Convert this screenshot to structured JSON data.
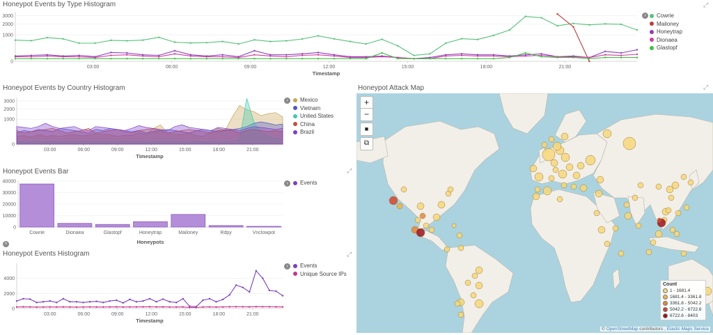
{
  "colors": {
    "cowrie": "#57c17b",
    "mailoney": "#bc3c3c",
    "honeytrap": "#8a3ebf",
    "dionaea": "#cf3ca0",
    "glastopf": "#3ec13e",
    "mexico": "#c9a257",
    "vietnam": "#4d56c9",
    "united_states": "#3fc8b0",
    "china": "#c94a3f",
    "brazil": "#7a3ec9",
    "events": "#7b3fc0",
    "unique_ips": "#c8358a",
    "bar_fill": "#b48ed8",
    "bar_stroke": "#8e5cc2"
  },
  "panels": {
    "type_hist": {
      "title": "Honeypot Events by Type Histogram",
      "xlabel": "Timestamp",
      "legend": [
        {
          "label": "Cowrie",
          "color": "#57c17b"
        },
        {
          "label": "Mailoney",
          "color": "#bc3c3c"
        },
        {
          "label": "Honeytrap",
          "color": "#8a3ebf"
        },
        {
          "label": "Dionaea",
          "color": "#cf3ca0"
        },
        {
          "label": "Glastopf",
          "color": "#3ec13e"
        }
      ]
    },
    "country_hist": {
      "title": "Honeypot Events by Country Histogram",
      "xlabel": "Timestamp",
      "legend": [
        {
          "label": "Mexico",
          "color": "#c9a257"
        },
        {
          "label": "Vietnam",
          "color": "#4d56c9"
        },
        {
          "label": "United States",
          "color": "#3fc8b0"
        },
        {
          "label": "China",
          "color": "#c94a3f"
        },
        {
          "label": "Brazil",
          "color": "#7a3ec9"
        }
      ]
    },
    "events_bar": {
      "title": "Honeypot Events Bar",
      "xlabel": "Honeypots",
      "legend": [
        {
          "label": "Events",
          "color": "#7b3fc0"
        }
      ]
    },
    "events_hist": {
      "title": "Honeypot Events Histogram",
      "xlabel": "Timestamp",
      "legend": [
        {
          "label": "Events",
          "color": "#7b3fc0"
        },
        {
          "label": "Unique Source IPs",
          "color": "#c8358a"
        }
      ]
    },
    "attack_map": {
      "title": "Honeypot Attack Map",
      "zoom_in": "+",
      "zoom_out": "−",
      "draw_rect": "■",
      "fit_bounds": "⧉",
      "attribution_prefix": "© ",
      "attribution_osm": "OpenStreetMap",
      "attribution_mid": " contributors , ",
      "attribution_ems": "Elastic Maps Service",
      "count_legend": {
        "title": "Count",
        "items": [
          {
            "label": "1 - 1681.4",
            "color": "#f6d77a"
          },
          {
            "label": "1681.4 - 3361.8",
            "color": "#f0b449"
          },
          {
            "label": "3361.8 - 5042.2",
            "color": "#e6873a"
          },
          {
            "label": "5042.2 - 6722.6",
            "color": "#d2452f"
          },
          {
            "label": "6722.6 - 8403",
            "color": "#a0101e"
          }
        ]
      }
    }
  },
  "chart_data": [
    {
      "type": "line",
      "title": "Honeypot Events by Type Histogram",
      "xlabel": "Timestamp",
      "ylabel": "",
      "scale": "sqrt",
      "yticks": [
        0,
        1000,
        2000,
        3000
      ],
      "ytick_labels": [
        "0",
        "1000",
        "2000",
        "3000"
      ],
      "xticks": [
        "03:00",
        "06:00",
        "09:00",
        "12:00",
        "15:00",
        "18:00",
        "21:00"
      ],
      "series": [
        {
          "name": "Cowrie",
          "color": "#57c17b",
          "values": [
            640,
            610,
            800,
            720,
            470,
            470,
            630,
            600,
            640,
            820,
            520,
            480,
            500,
            560,
            430,
            660,
            560,
            600,
            710,
            930,
            720,
            560,
            430,
            690,
            340,
            50,
            80,
            470,
            730,
            680,
            960,
            1400,
            2880,
            2710,
            1800,
            2050,
            1900,
            2000,
            1960,
            1400
          ]
        },
        {
          "name": "Mailoney",
          "color": "#bc3c3c",
          "values": [
            null,
            null,
            null,
            null,
            null,
            null,
            null,
            null,
            null,
            null,
            null,
            null,
            null,
            null,
            null,
            null,
            null,
            null,
            null,
            null,
            null,
            null,
            null,
            null,
            null,
            null,
            null,
            null,
            null,
            null,
            null,
            null,
            null,
            null,
            3200,
            1700,
            0,
            null,
            null,
            null
          ]
        },
        {
          "name": "Honeytrap",
          "color": "#8a3ebf",
          "values": [
            40,
            50,
            60,
            40,
            50,
            30,
            110,
            100,
            60,
            50,
            160,
            60,
            40,
            60,
            30,
            160,
            60,
            60,
            80,
            110,
            60,
            30,
            30,
            40,
            20,
            10,
            20,
            60,
            80,
            60,
            60,
            40,
            60,
            80,
            30,
            40,
            20,
            140,
            100,
            190
          ]
        },
        {
          "name": "Dionaea",
          "color": "#cf3ca0",
          "values": [
            30,
            30,
            40,
            30,
            30,
            20,
            50,
            60,
            40,
            30,
            80,
            40,
            30,
            30,
            20,
            60,
            40,
            30,
            50,
            60,
            40,
            20,
            20,
            30,
            20,
            10,
            10,
            40,
            50,
            40,
            40,
            30,
            40,
            50,
            30,
            30,
            20,
            60,
            50,
            70
          ]
        },
        {
          "name": "Glastopf",
          "color": "#3ec13e",
          "values": [
            10,
            10,
            10,
            10,
            10,
            10,
            10,
            10,
            10,
            10,
            10,
            10,
            10,
            10,
            10,
            10,
            10,
            10,
            10,
            10,
            10,
            10,
            10,
            100,
            10,
            10,
            10,
            10,
            10,
            10,
            10,
            20,
            100,
            30,
            20,
            20,
            10,
            20,
            20,
            20
          ]
        }
      ]
    },
    {
      "type": "area",
      "title": "Honeypot Events by Country Histogram",
      "xlabel": "Timestamp",
      "ylabel": "",
      "scale": "sqrt",
      "yticks": [
        0,
        1000,
        2000,
        3000
      ],
      "ytick_labels": [
        "0",
        "1000",
        "2000",
        "3000"
      ],
      "xticks": [
        "03:00",
        "06:00",
        "09:00",
        "12:00",
        "15:00",
        "18:00",
        "21:00"
      ],
      "series": [
        {
          "name": "Mexico",
          "color": "#c9a257",
          "values": [
            100,
            120,
            80,
            150,
            100,
            120,
            100,
            130,
            150,
            110,
            130,
            180,
            150,
            140,
            100,
            130,
            120,
            200,
            150,
            400,
            600,
            200,
            150,
            150,
            200,
            120,
            100,
            250,
            400,
            300,
            1200,
            2400,
            1900,
            1700,
            1300,
            1500,
            1600,
            1200
          ]
        },
        {
          "name": "Vietnam",
          "color": "#4d56c9",
          "values": [
            200,
            300,
            250,
            350,
            300,
            250,
            400,
            350,
            300,
            250,
            200,
            350,
            300,
            400,
            350,
            300,
            250,
            300,
            200,
            250,
            300,
            350,
            300,
            250,
            200,
            300,
            350,
            300,
            250,
            300,
            350,
            400,
            500,
            700,
            800,
            700,
            600,
            650
          ]
        },
        {
          "name": "United States",
          "color": "#3fc8b0",
          "values": [
            10,
            10,
            10,
            10,
            10,
            10,
            10,
            10,
            10,
            10,
            10,
            10,
            10,
            10,
            10,
            10,
            10,
            10,
            10,
            10,
            10,
            10,
            10,
            10,
            10,
            10,
            10,
            10,
            10,
            10,
            10,
            30,
            3400,
            800,
            200,
            100,
            50,
            50
          ]
        },
        {
          "name": "China",
          "color": "#c94a3f",
          "values": [
            300,
            200,
            250,
            300,
            350,
            400,
            300,
            200,
            250,
            300,
            400,
            200,
            250,
            300,
            350,
            250,
            200,
            300,
            350,
            400,
            300,
            200,
            250,
            300,
            350,
            300,
            250,
            200,
            300,
            350,
            300,
            200,
            300,
            350,
            300,
            250,
            300,
            250
          ]
        },
        {
          "name": "Brazil",
          "color": "#7a3ec9",
          "values": [
            500,
            450,
            400,
            500,
            700,
            500,
            400,
            450,
            500,
            350,
            300,
            500,
            450,
            400,
            350,
            300,
            400,
            550,
            450,
            400,
            350,
            300,
            500,
            600,
            450,
            400,
            350,
            300,
            450,
            400,
            350,
            300,
            400,
            500,
            450,
            400,
            350,
            400
          ]
        }
      ]
    },
    {
      "type": "bar",
      "title": "Honeypot Events Bar",
      "xlabel": "Honeypots",
      "ylabel": "",
      "ylim": [
        0,
        40000
      ],
      "yticks": [
        0,
        10000,
        20000,
        30000,
        40000
      ],
      "ytick_labels": [
        "0",
        "10000",
        "20000",
        "30000",
        "40000"
      ],
      "categories": [
        "Cowrie",
        "Dionaea",
        "Glastopf",
        "Honeytrap",
        "Mailoney",
        "Rdpy",
        "Vnclowpot"
      ],
      "series": [
        {
          "name": "Events",
          "values": [
            37500,
            3200,
            2300,
            4700,
            11000,
            1300,
            600
          ]
        }
      ]
    },
    {
      "type": "line",
      "title": "Honeypot Events Histogram",
      "xlabel": "Timestamp",
      "ylabel": "",
      "ylim": [
        0,
        6000
      ],
      "yticks": [
        0,
        2000,
        4000
      ],
      "ytick_labels": [
        "0",
        "2000",
        "4000"
      ],
      "xticks": [
        "03:00",
        "06:00",
        "09:00",
        "12:00",
        "15:00",
        "18:00",
        "21:00"
      ],
      "series": [
        {
          "name": "Events",
          "color": "#7b3fc0",
          "values": [
            1000,
            1300,
            1250,
            800,
            900,
            1000,
            800,
            1300,
            900,
            900,
            800,
            900,
            950,
            800,
            1000,
            1100,
            750,
            1200,
            900,
            1000,
            1300,
            900,
            1250,
            900,
            800,
            1300,
            300,
            250,
            1100,
            1300,
            900,
            1200,
            1800,
            3100,
            2800,
            2200,
            5000,
            4000,
            2400,
            2300,
            1700
          ]
        },
        {
          "name": "Unique Source IPs",
          "color": "#c8358a",
          "values": [
            200,
            220,
            210,
            190,
            200,
            210,
            200,
            210,
            200,
            190,
            200,
            210,
            200,
            200,
            210,
            220,
            200,
            210,
            210,
            220,
            230,
            210,
            220,
            200,
            200,
            210,
            150,
            140,
            200,
            210,
            200,
            210,
            230,
            240,
            230,
            220,
            250,
            240,
            230,
            220,
            210
          ]
        }
      ]
    }
  ]
}
